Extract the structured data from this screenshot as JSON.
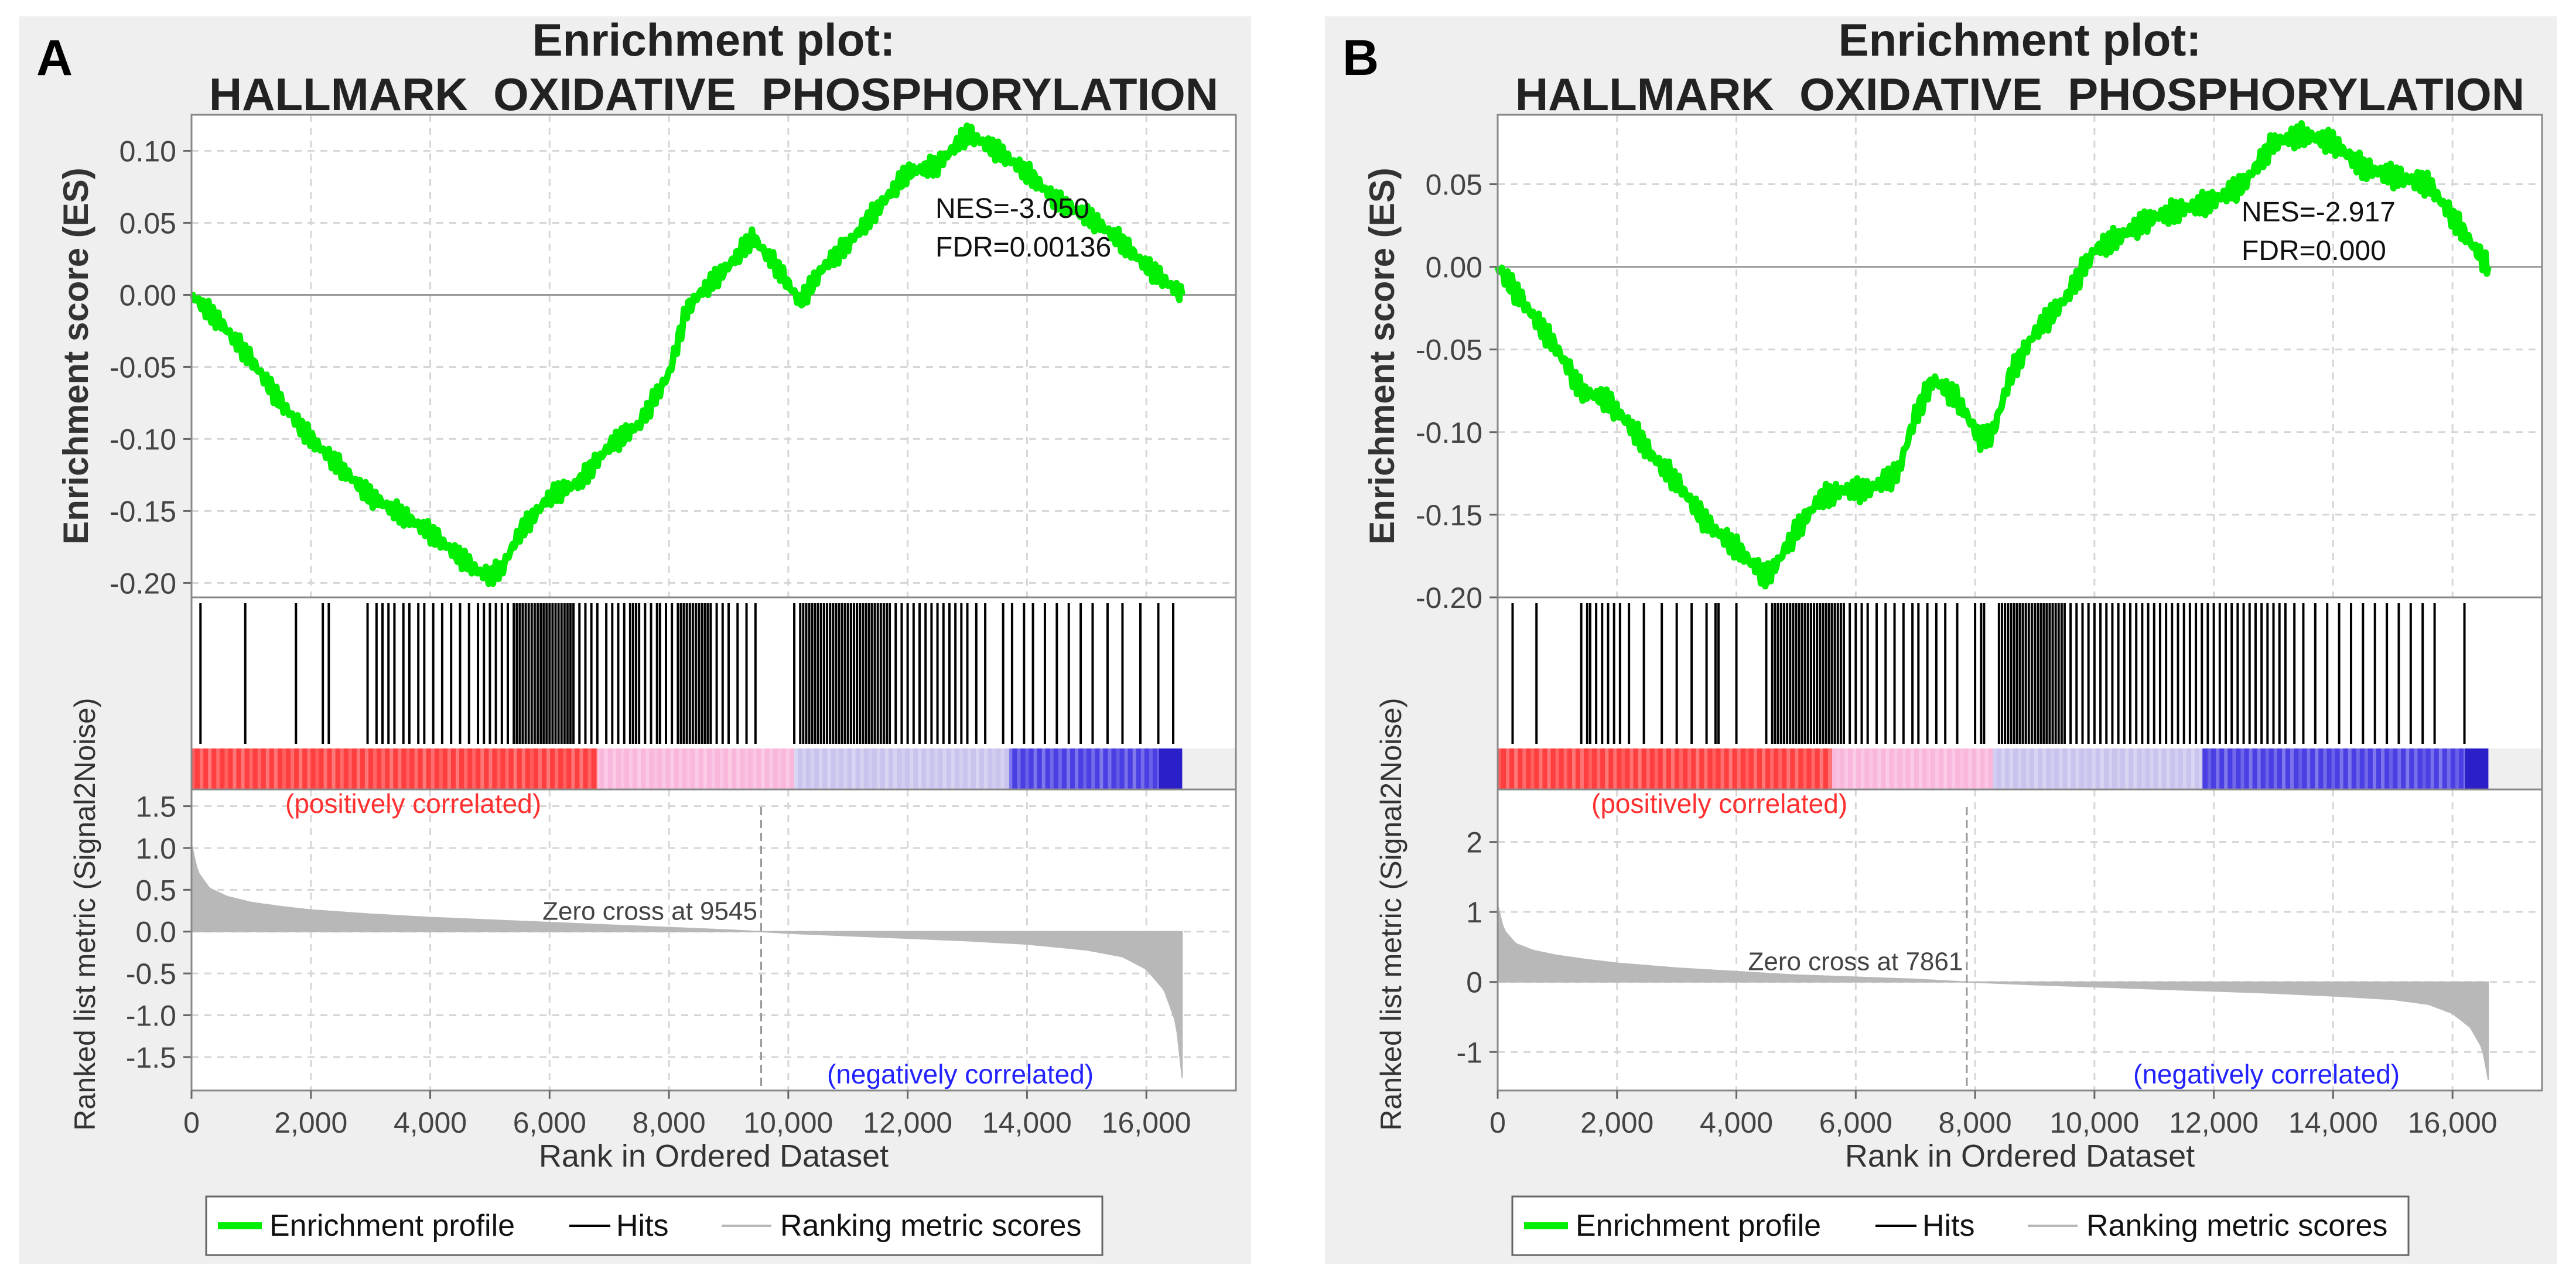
{
  "figure": {
    "colors": {
      "profile": "#00ee00",
      "hits": "#000000",
      "metric": "#b8b8b8",
      "grid": "#d6d6d6",
      "positive_label": "#ff3030",
      "negative_label": "#2222ff",
      "panel_background": "#efefef"
    }
  },
  "chart_data": [
    {
      "type": "line",
      "panel_label": "A",
      "title_line1": "Enrichment plot:",
      "title_line2": "HALLMARK_OXIDATIVE_PHOSPHORYLATION",
      "es": {
        "ylabel": "Enrichment score (ES)",
        "ylim": [
          -0.21,
          0.125
        ],
        "yticks": [
          0.1,
          0.05,
          0.0,
          -0.05,
          -0.1,
          -0.15,
          -0.2
        ],
        "ytick_labels": [
          "0.10",
          "0.05",
          "0.00",
          "-0.05",
          "-0.10",
          "-0.15",
          "-0.20"
        ],
        "x": [
          0,
          500,
          1000,
          1500,
          2000,
          2500,
          3000,
          3500,
          4000,
          4500,
          4800,
          5000,
          5200,
          5500,
          6000,
          6500,
          7000,
          7500,
          8000,
          8300,
          8500,
          9000,
          9400,
          9800,
          10200,
          10600,
          11000,
          11500,
          12000,
          12500,
          13000,
          13500,
          14000,
          14500,
          15000,
          15500,
          16000,
          16600
        ],
        "y": [
          0.0,
          -0.02,
          -0.045,
          -0.075,
          -0.1,
          -0.12,
          -0.14,
          -0.152,
          -0.165,
          -0.182,
          -0.192,
          -0.195,
          -0.19,
          -0.165,
          -0.14,
          -0.13,
          -0.105,
          -0.09,
          -0.055,
          -0.01,
          0.0,
          0.02,
          0.04,
          0.02,
          -0.005,
          0.02,
          0.035,
          0.06,
          0.085,
          0.09,
          0.112,
          0.1,
          0.085,
          0.065,
          0.055,
          0.04,
          0.02,
          0.0
        ],
        "annotation": [
          "NES=-3.050",
          "FDR=0.00136"
        ]
      },
      "hits": [
        150,
        900,
        1750,
        2200,
        2300,
        2950,
        3100,
        3200,
        3300,
        3400,
        3550,
        3650,
        3800,
        3900,
        4050,
        4200,
        4350,
        4500,
        4650,
        4800,
        4900,
        5000,
        5100,
        5200,
        5300,
        5400,
        5450,
        5500,
        5550,
        5600,
        5650,
        5700,
        5750,
        5800,
        5850,
        5900,
        5950,
        6000,
        6050,
        6100,
        6150,
        6200,
        6250,
        6300,
        6350,
        6400,
        6500,
        6600,
        6700,
        6800,
        6950,
        7050,
        7150,
        7250,
        7350,
        7400,
        7450,
        7500,
        7600,
        7700,
        7800,
        7850,
        7950,
        8050,
        8150,
        8200,
        8250,
        8300,
        8350,
        8400,
        8450,
        8500,
        8550,
        8600,
        8650,
        8700,
        8800,
        8900,
        9000,
        9150,
        9300,
        9450,
        10100,
        10200,
        10250,
        10300,
        10350,
        10400,
        10450,
        10500,
        10550,
        10600,
        10650,
        10700,
        10750,
        10800,
        10850,
        10900,
        10950,
        11000,
        11050,
        11100,
        11150,
        11200,
        11250,
        11300,
        11350,
        11400,
        11450,
        11500,
        11550,
        11600,
        11650,
        11700,
        11800,
        11900,
        12000,
        12100,
        12200,
        12300,
        12400,
        12500,
        12600,
        12700,
        12800,
        12900,
        13000,
        13150,
        13300,
        13600,
        13750,
        13950,
        14100,
        14300,
        14500,
        14700,
        14900,
        15100,
        15350,
        15600,
        15900,
        16200,
        16450
      ],
      "heatmap_breaks": [
        0,
        6800,
        10100,
        13700,
        16600
      ],
      "heatmap_colors": [
        "#ff3f3f",
        "#f9b7dc",
        "#c8c4ee",
        "#4a3fe3"
      ],
      "metric": {
        "ylabel": "Ranked list metric (Signal2Noise)",
        "ylim": [
          -1.9,
          1.7
        ],
        "yticks": [
          1.5,
          1.0,
          0.5,
          0.0,
          -0.5,
          -1.0,
          -1.5
        ],
        "ytick_labels": [
          "1.5",
          "1.0",
          "0.5",
          "0.0",
          "-0.5",
          "-1.0",
          "-1.5"
        ],
        "x": [
          0,
          100,
          300,
          600,
          1000,
          1500,
          2000,
          3000,
          4000,
          5000,
          6000,
          7000,
          8000,
          9000,
          9545,
          10000,
          11000,
          12000,
          13000,
          14000,
          15000,
          15600,
          16000,
          16300,
          16500,
          16600
        ],
        "values": [
          1.05,
          0.72,
          0.52,
          0.42,
          0.35,
          0.3,
          0.26,
          0.21,
          0.17,
          0.14,
          0.11,
          0.08,
          0.05,
          0.02,
          0.0,
          -0.02,
          -0.05,
          -0.08,
          -0.11,
          -0.15,
          -0.22,
          -0.3,
          -0.45,
          -0.7,
          -1.1,
          -1.75
        ],
        "zero_cross": 9545,
        "zero_cross_label": "Zero cross at 9545",
        "positive_label": "(positively correlated)",
        "negative_label": "(negatively correlated)"
      },
      "xlabel": "Rank in Ordered Dataset",
      "xlim": [
        0,
        17500
      ],
      "xticks": [
        0,
        2000,
        4000,
        6000,
        8000,
        10000,
        12000,
        14000,
        16000
      ],
      "xtick_labels": [
        "0",
        "2,000",
        "4,000",
        "6,000",
        "8,000",
        "10,000",
        "12,000",
        "14,000",
        "16,000"
      ],
      "legend": [
        "Enrichment profile",
        "Hits",
        "Ranking metric scores"
      ]
    },
    {
      "type": "line",
      "panel_label": "B",
      "title_line1": "Enrichment plot:",
      "title_line2": "HALLMARK_OXIDATIVE_PHOSPHORYLATION",
      "es": {
        "ylabel": "Enrichment score (ES)",
        "ylim": [
          -0.2,
          0.092
        ],
        "yticks": [
          0.05,
          0.0,
          -0.05,
          -0.1,
          -0.15,
          -0.2
        ],
        "ytick_labels": [
          "0.05",
          "0.00",
          "-0.05",
          "-0.10",
          "-0.15",
          "-0.20"
        ],
        "x": [
          0,
          300,
          700,
          1000,
          1400,
          1800,
          2200,
          2600,
          3000,
          3500,
          4000,
          4500,
          4700,
          5000,
          5400,
          5800,
          6200,
          6700,
          7000,
          7300,
          7700,
          8100,
          8300,
          8600,
          9000,
          9500,
          10000,
          10500,
          11000,
          11500,
          12000,
          12500,
          13000,
          13500,
          14000,
          14500,
          15000,
          15600,
          16200,
          16600
        ],
        "y": [
          0.0,
          -0.015,
          -0.035,
          -0.05,
          -0.075,
          -0.08,
          -0.095,
          -0.115,
          -0.13,
          -0.155,
          -0.17,
          -0.188,
          -0.178,
          -0.16,
          -0.14,
          -0.135,
          -0.135,
          -0.125,
          -0.09,
          -0.068,
          -0.08,
          -0.105,
          -0.1,
          -0.065,
          -0.04,
          -0.02,
          0.01,
          0.02,
          0.03,
          0.035,
          0.04,
          0.05,
          0.075,
          0.08,
          0.075,
          0.06,
          0.055,
          0.05,
          0.02,
          0.0
        ],
        "annotation": [
          "NES=-2.917",
          "FDR=0.000"
        ]
      },
      "hits": [
        250,
        650,
        1400,
        1500,
        1550,
        1650,
        1750,
        1850,
        1950,
        2050,
        2200,
        2450,
        2750,
        3000,
        3250,
        3500,
        3650,
        3700,
        4000,
        4500,
        4600,
        4650,
        4700,
        4750,
        4800,
        4850,
        4900,
        4950,
        5000,
        5050,
        5100,
        5150,
        5200,
        5250,
        5300,
        5350,
        5400,
        5450,
        5500,
        5550,
        5600,
        5650,
        5700,
        5750,
        5800,
        5900,
        6000,
        6100,
        6200,
        6350,
        6500,
        6650,
        6800,
        6950,
        7050,
        7200,
        7350,
        7500,
        7700,
        8000,
        8100,
        8150,
        8400,
        8450,
        8500,
        8550,
        8600,
        8650,
        8700,
        8750,
        8800,
        8850,
        8900,
        8950,
        9000,
        9050,
        9100,
        9150,
        9200,
        9250,
        9300,
        9350,
        9400,
        9450,
        9500,
        9600,
        9700,
        9800,
        9900,
        10000,
        10100,
        10200,
        10300,
        10400,
        10500,
        10600,
        10700,
        10800,
        10900,
        11000,
        11100,
        11200,
        11300,
        11400,
        11500,
        11600,
        11700,
        11800,
        11900,
        12000,
        12100,
        12200,
        12300,
        12400,
        12500,
        12600,
        12700,
        12800,
        12900,
        13000,
        13100,
        13200,
        13350,
        13500,
        13700,
        13900,
        14100,
        14300,
        14500,
        14700,
        14900,
        15100,
        15300,
        15500,
        15700,
        16200
      ],
      "heatmap_breaks": [
        0,
        5600,
        8300,
        11800,
        16600
      ],
      "heatmap_colors": [
        "#ff3f3f",
        "#f9b7dc",
        "#c8c4ee",
        "#4a3fe3"
      ],
      "metric": {
        "ylabel": "Ranked list metric (Signal2Noise)",
        "ylim": [
          -1.55,
          2.75
        ],
        "yticks": [
          2,
          1,
          0,
          -1
        ],
        "ytick_labels": [
          "2",
          "1",
          "0",
          "-1"
        ],
        "x": [
          0,
          100,
          300,
          600,
          1000,
          1500,
          2000,
          3000,
          4000,
          5000,
          6000,
          7000,
          7861,
          9000,
          10000,
          11000,
          12000,
          13000,
          14000,
          15000,
          15600,
          16000,
          16300,
          16500,
          16600
        ],
        "values": [
          1.1,
          0.75,
          0.55,
          0.45,
          0.38,
          0.32,
          0.27,
          0.2,
          0.15,
          0.1,
          0.07,
          0.04,
          0.0,
          -0.04,
          -0.07,
          -0.1,
          -0.13,
          -0.16,
          -0.2,
          -0.25,
          -0.32,
          -0.45,
          -0.65,
          -0.95,
          -1.4
        ],
        "zero_cross": 7861,
        "zero_cross_label": "Zero cross at 7861",
        "positive_label": "(positively correlated)",
        "negative_label": "(negatively correlated)"
      },
      "xlabel": "Rank in Ordered Dataset",
      "xlim": [
        0,
        17500
      ],
      "xticks": [
        0,
        2000,
        4000,
        6000,
        8000,
        10000,
        12000,
        14000,
        16000
      ],
      "xtick_labels": [
        "0",
        "2,000",
        "4,000",
        "6,000",
        "8,000",
        "10,000",
        "12,000",
        "14,000",
        "16,000"
      ],
      "legend": [
        "Enrichment profile",
        "Hits",
        "Ranking metric scores"
      ]
    }
  ]
}
